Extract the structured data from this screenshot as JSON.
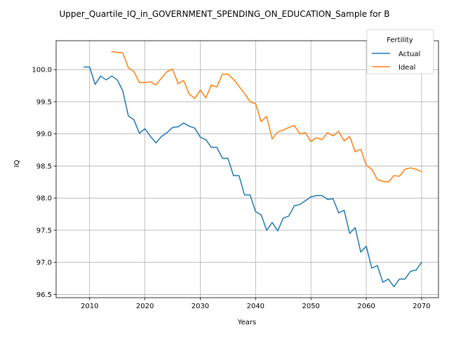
{
  "chart_data": {
    "type": "line",
    "title": "Upper_Quartile_IQ_in_GOVERNMENT_SPENDING_ON_EDUCATION_Sample for B",
    "xlabel": "Years",
    "ylabel": "IQ",
    "xlim": [
      2003.95,
      2073.05
    ],
    "ylim": [
      96.45,
      100.45
    ],
    "xticks": [
      2010,
      2020,
      2030,
      2040,
      2050,
      2060,
      2070
    ],
    "yticks": [
      96.5,
      97.0,
      97.5,
      98.0,
      98.5,
      99.0,
      99.5,
      100.0
    ],
    "grid": true,
    "legend": {
      "title": "Fertility",
      "placement": "top-right"
    },
    "series": [
      {
        "name": "Actual",
        "color": "#1f77b4",
        "x": [
          2009,
          2010,
          2011,
          2012,
          2013,
          2014,
          2015,
          2016,
          2017,
          2018,
          2019,
          2020,
          2021,
          2022,
          2023,
          2024,
          2025,
          2026,
          2027,
          2028,
          2029,
          2030,
          2031,
          2032,
          2033,
          2034,
          2035,
          2036,
          2037,
          2038,
          2039,
          2040,
          2041,
          2042,
          2043,
          2044,
          2045,
          2046,
          2047,
          2048,
          2049,
          2050,
          2051,
          2052,
          2053,
          2054,
          2055,
          2056,
          2057,
          2058,
          2059,
          2060,
          2061,
          2062,
          2063,
          2064,
          2065,
          2066,
          2067,
          2068,
          2069,
          2070
        ],
        "values": [
          100.04,
          100.04,
          99.77,
          99.9,
          99.84,
          99.9,
          99.84,
          99.67,
          99.28,
          99.22,
          99.01,
          99.08,
          98.96,
          98.86,
          98.96,
          99.02,
          99.1,
          99.11,
          99.17,
          99.12,
          99.09,
          98.95,
          98.91,
          98.79,
          98.79,
          98.62,
          98.62,
          98.35,
          98.35,
          98.05,
          98.05,
          97.79,
          97.74,
          97.5,
          97.62,
          97.49,
          97.69,
          97.72,
          97.88,
          97.9,
          97.96,
          98.02,
          98.04,
          98.04,
          97.98,
          97.99,
          97.77,
          97.81,
          97.45,
          97.54,
          97.16,
          97.25,
          96.91,
          96.95,
          96.69,
          96.74,
          96.62,
          96.74,
          96.74,
          96.86,
          96.88,
          97.0
        ]
      },
      {
        "name": "Ideal",
        "color": "#ff7f0e",
        "x": [
          2014,
          2015,
          2016,
          2017,
          2018,
          2019,
          2020,
          2021,
          2022,
          2023,
          2024,
          2025,
          2026,
          2027,
          2028,
          2029,
          2030,
          2031,
          2032,
          2033,
          2034,
          2035,
          2036,
          2037,
          2038,
          2039,
          2040,
          2041,
          2042,
          2043,
          2044,
          2045,
          2046,
          2047,
          2048,
          2049,
          2050,
          2051,
          2052,
          2053,
          2054,
          2055,
          2056,
          2057,
          2058,
          2059,
          2060,
          2061,
          2062,
          2063,
          2064,
          2065,
          2066,
          2067,
          2068,
          2069,
          2070
        ],
        "values": [
          100.28,
          100.27,
          100.26,
          100.03,
          99.97,
          99.8,
          99.8,
          99.81,
          99.76,
          99.87,
          99.97,
          100.01,
          99.78,
          99.83,
          99.62,
          99.55,
          99.68,
          99.56,
          99.76,
          99.73,
          99.93,
          99.93,
          99.85,
          99.74,
          99.63,
          99.5,
          99.47,
          99.19,
          99.27,
          98.92,
          99.03,
          99.06,
          99.1,
          99.13,
          99.0,
          99.02,
          98.88,
          98.94,
          98.91,
          99.02,
          98.97,
          99.04,
          98.89,
          98.96,
          98.72,
          98.76,
          98.51,
          98.45,
          98.29,
          98.26,
          98.25,
          98.35,
          98.34,
          98.45,
          98.47,
          98.45,
          98.41
        ]
      }
    ]
  }
}
